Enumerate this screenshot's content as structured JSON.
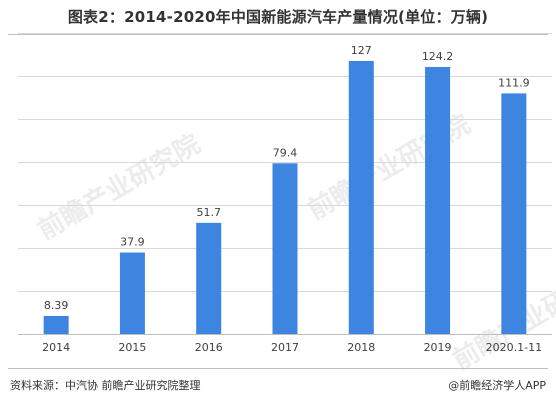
{
  "title": "图表2：2014-2020年中国新能源汽车产量情况(单位：万辆)",
  "footer": {
    "source": "资料来源：中汽协 前瞻产业研究院整理",
    "credit": "@前瞻经济学人APP"
  },
  "watermark": {
    "text": "前瞻产业研究院"
  },
  "colors": {
    "bar": "#3d85e0",
    "grid": "#d9d9d9",
    "text": "#404040"
  },
  "chart_data": {
    "type": "bar",
    "title": "图表2：2014-2020年中国新能源汽车产量情况(单位：万辆)",
    "categories": [
      "2014",
      "2015",
      "2016",
      "2017",
      "2018",
      "2019",
      "2020.1-11"
    ],
    "values": [
      8.39,
      37.9,
      51.7,
      79.4,
      127,
      124.2,
      111.9
    ],
    "data_labels": [
      "8.39",
      "37.9",
      "51.7",
      "79.4",
      "127",
      "124.2",
      "111.9"
    ],
    "xlabel": "",
    "ylabel": "",
    "ylim": [
      0,
      140
    ],
    "grid": true,
    "legend": "none"
  }
}
